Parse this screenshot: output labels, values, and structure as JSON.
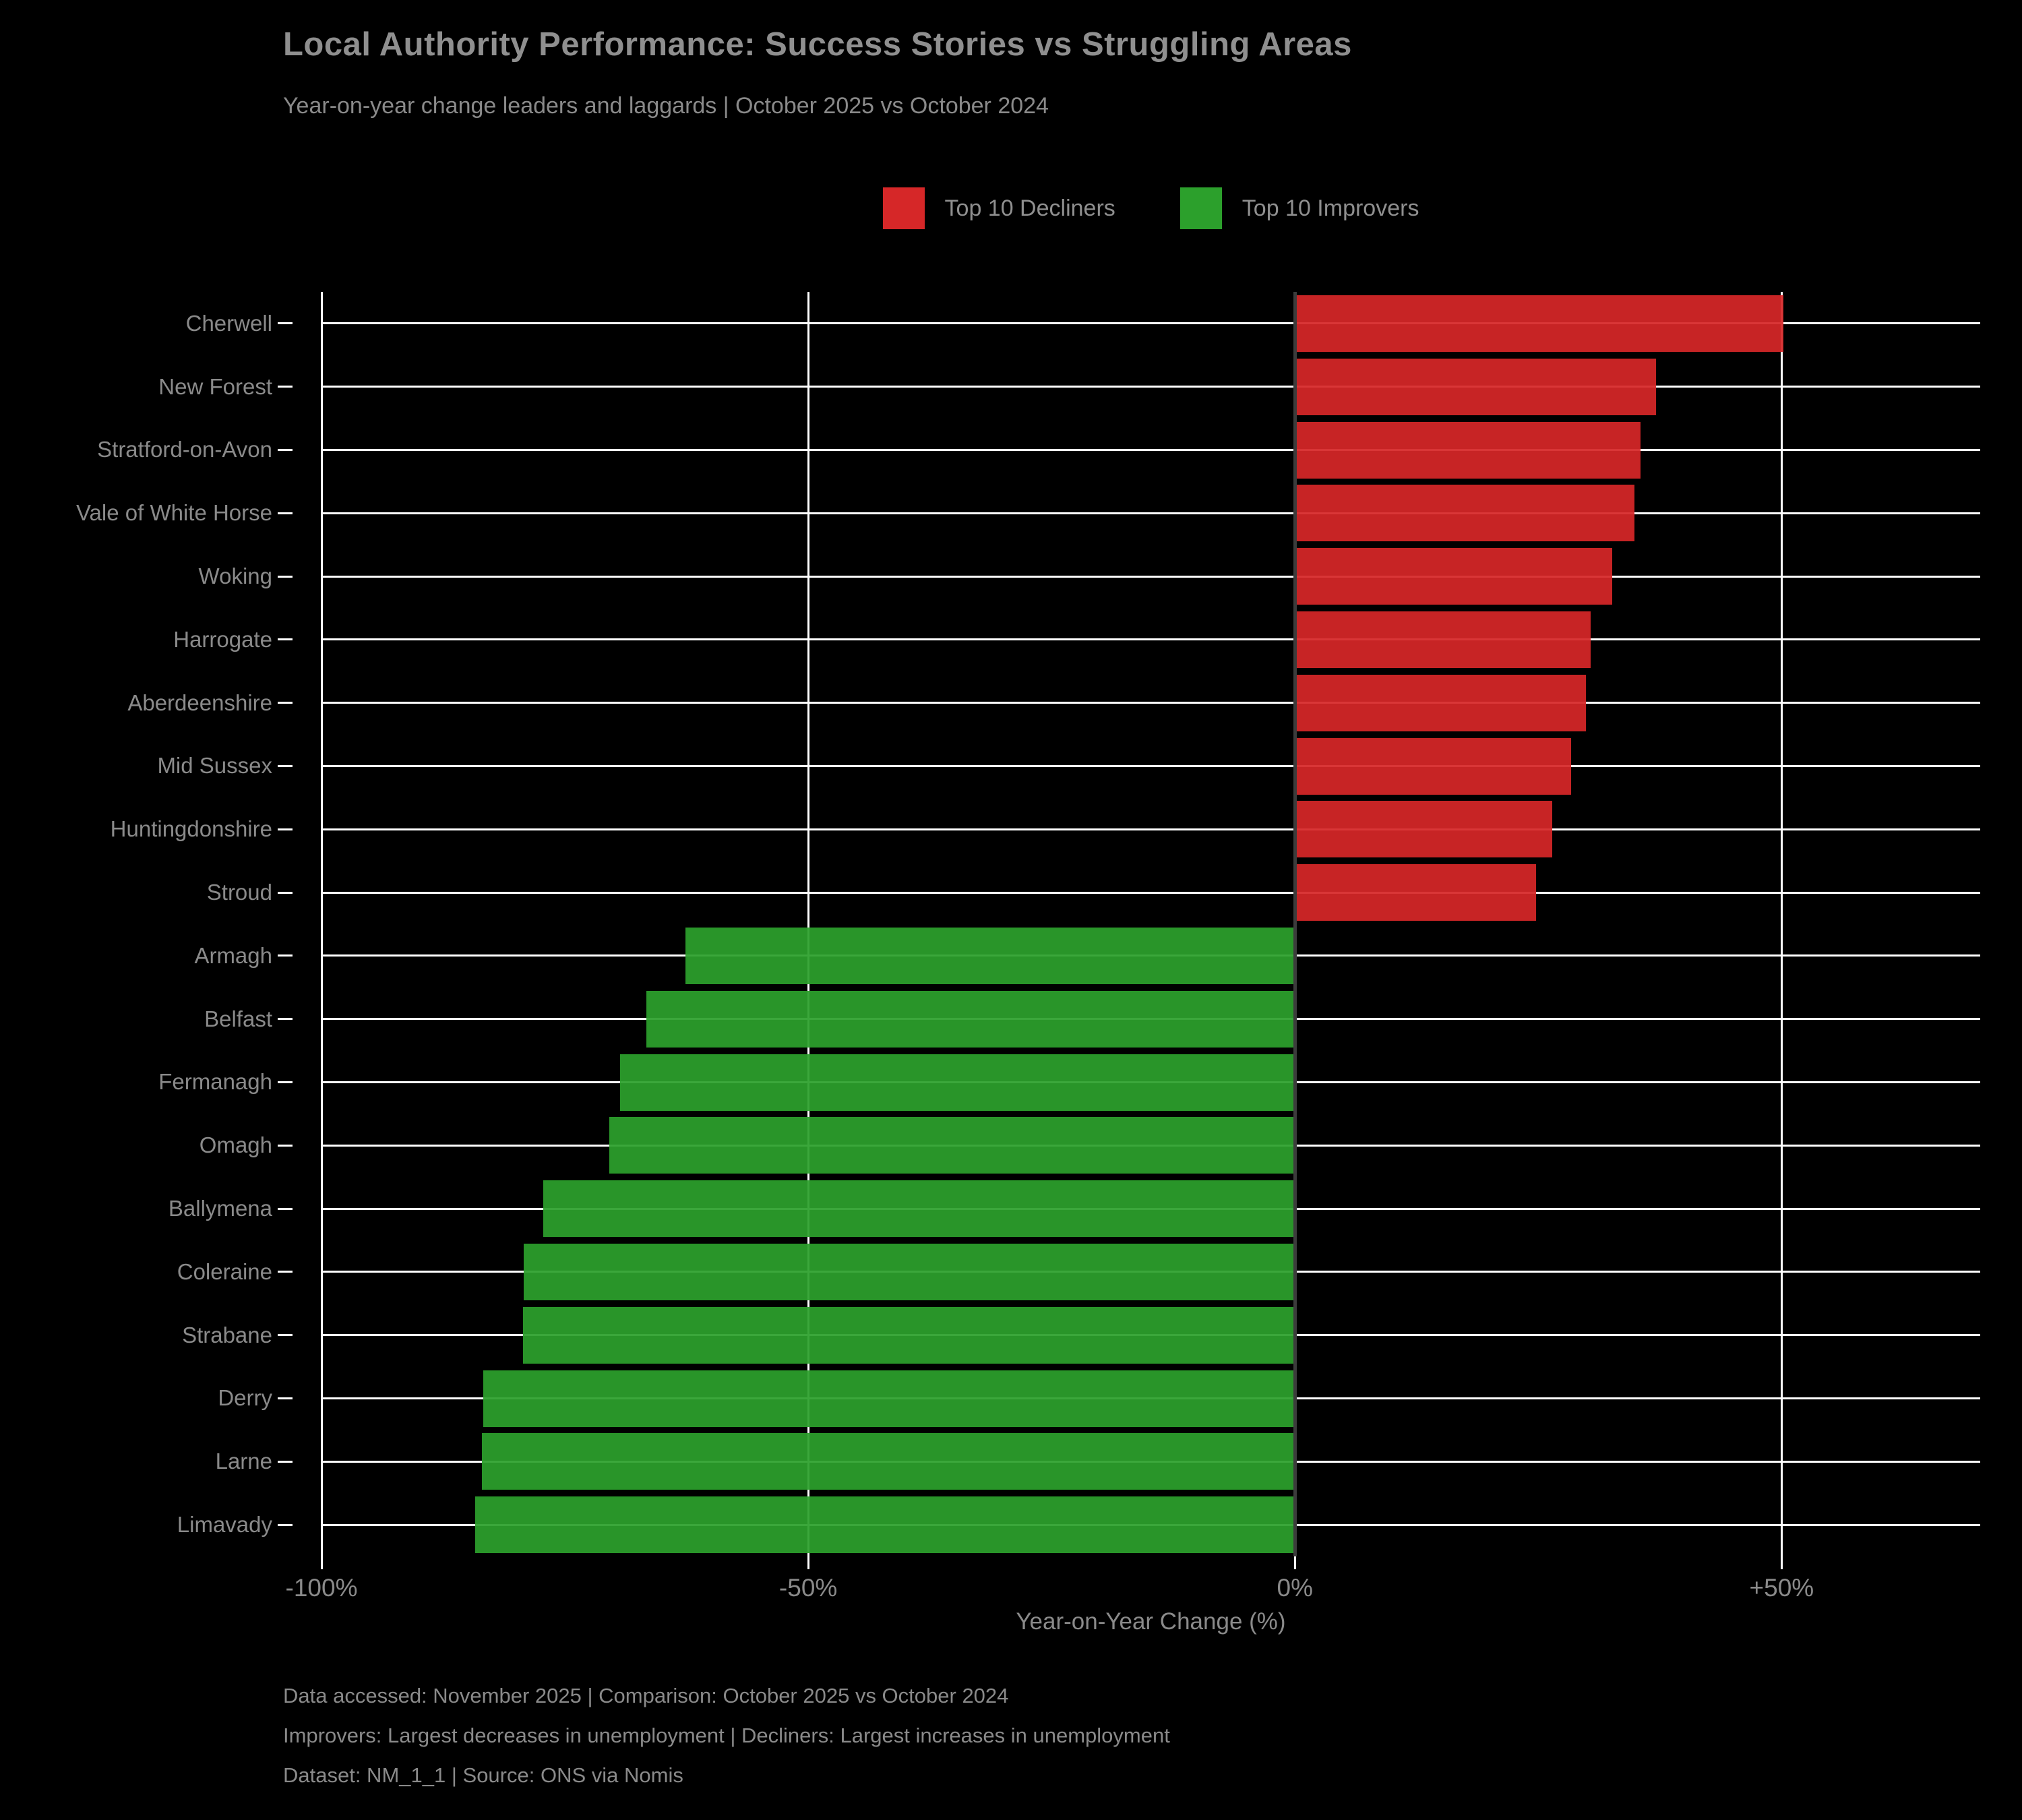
{
  "title": "Local Authority Performance: Success Stories vs Struggling Areas",
  "subtitle": "Year-on-year change leaders and laggards | October 2025 vs October 2024",
  "legend": {
    "items": [
      {
        "label": "Top 10 Decliners",
        "color": "#d62728"
      },
      {
        "label": "Top 10 Improvers",
        "color": "#2ca02c"
      }
    ]
  },
  "chart_data": {
    "type": "bar",
    "orientation": "horizontal",
    "title": "Local Authority Performance: Success Stories vs Struggling Areas",
    "subtitle": "Year-on-year change leaders and laggards | October 2025 vs October 2024",
    "xlabel": "Year-on-Year Change (%)",
    "xlim": [
      -100,
      70.4
    ],
    "grid": true,
    "legend_position": "top-center",
    "x_ticks": [
      {
        "value": -100,
        "label": "-100%"
      },
      {
        "value": -50,
        "label": "-50%"
      },
      {
        "value": 0,
        "label": "0%"
      },
      {
        "value": 50,
        "label": "+50%"
      }
    ],
    "series": [
      {
        "name": "Top 10 Decliners",
        "color": "#d62728",
        "meaning": "Largest increases in unemployment"
      },
      {
        "name": "Top 10 Improvers",
        "color": "#2ca02c",
        "meaning": "Largest decreases in unemployment"
      }
    ],
    "categories": [
      "Cherwell",
      "New Forest",
      "Stratford-on-Avon",
      "Vale of White Horse",
      "Woking",
      "Harrogate",
      "Aberdeenshire",
      "Mid Sussex",
      "Huntingdonshire",
      "Stroud",
      "Armagh",
      "Belfast",
      "Fermanagh",
      "Omagh",
      "Ballymena",
      "Coleraine",
      "Strabane",
      "Derry",
      "Larne",
      "Limavady"
    ],
    "values": [
      50.2,
      37.1,
      35.5,
      34.9,
      32.6,
      30.4,
      29.9,
      28.4,
      26.4,
      24.8,
      -62.6,
      -66.6,
      -69.3,
      -70.4,
      -77.2,
      -79.2,
      -79.3,
      -83.4,
      -83.5,
      -84.2
    ],
    "bar_series": [
      "Top 10 Decliners",
      "Top 10 Decliners",
      "Top 10 Decliners",
      "Top 10 Decliners",
      "Top 10 Decliners",
      "Top 10 Decliners",
      "Top 10 Decliners",
      "Top 10 Decliners",
      "Top 10 Decliners",
      "Top 10 Decliners",
      "Top 10 Improvers",
      "Top 10 Improvers",
      "Top 10 Improvers",
      "Top 10 Improvers",
      "Top 10 Improvers",
      "Top 10 Improvers",
      "Top 10 Improvers",
      "Top 10 Improvers",
      "Top 10 Improvers",
      "Top 10 Improvers"
    ]
  },
  "footer": {
    "lines": [
      "Data accessed: November 2025 | Comparison: October 2025 vs October 2024",
      "Improvers: Largest decreases in unemployment | Decliners: Largest increases in unemployment",
      "Dataset: NM_1_1 | Source: ONS via Nomis"
    ]
  },
  "colors": {
    "background": "#000000",
    "text": "#8a8a8a",
    "gridline": "#ffffff",
    "zero_line": "#3c3c3c",
    "decliners": "#d62728",
    "improvers": "#2ca02c"
  }
}
